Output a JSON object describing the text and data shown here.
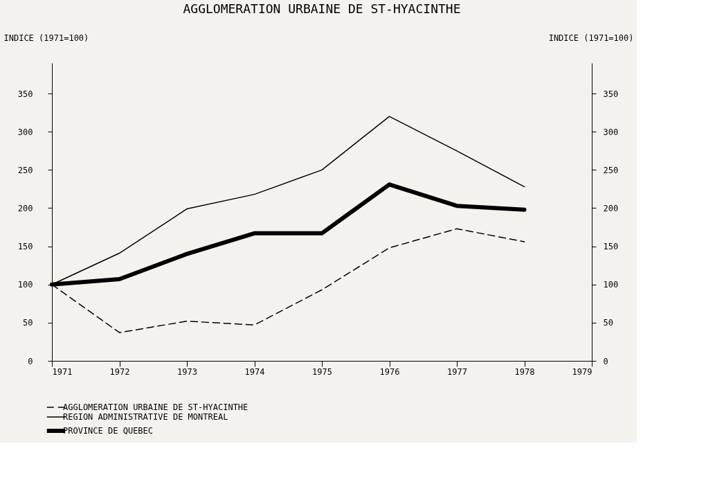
{
  "chart_data": {
    "type": "line",
    "title": "AGGLOMERATION URBAINE DE ST-HYACINTHE",
    "ylabel": "INDICE (1971=100)",
    "y2label": "INDICE (1971=100)",
    "x": [
      1971,
      1972,
      1973,
      1974,
      1975,
      1976,
      1977,
      1978
    ],
    "xlim": [
      1971,
      1979
    ],
    "xticks": [
      1971,
      1972,
      1973,
      1974,
      1975,
      1976,
      1977,
      1978,
      1979
    ],
    "ylim": [
      0,
      390
    ],
    "yticks": [
      0,
      50,
      100,
      150,
      200,
      250,
      300,
      350
    ],
    "y2lim": [
      0,
      390
    ],
    "y2ticks": [
      0,
      50,
      100,
      150,
      200,
      250,
      300,
      350
    ],
    "grid": false,
    "legend": "bottom left",
    "marker": "none",
    "series": [
      {
        "name": "AGGLOMERATION URBAINE DE ST-HYACINTHE",
        "color": "#000000",
        "line_style": "dashed",
        "values": [
          100,
          37,
          52,
          47,
          93,
          148,
          173,
          156
        ]
      },
      {
        "name": "REGION ADMINISTRATIVE DE MONTREAL",
        "color": "#000000",
        "line_style": "solid",
        "values": [
          100,
          141,
          199,
          218,
          250,
          320,
          275,
          228
        ]
      },
      {
        "name": "PROVINCE DE QUEBEC",
        "color": "#000000",
        "line_style": "solid",
        "values": [
          100,
          107,
          140,
          167,
          167,
          231,
          203,
          198
        ]
      }
    ]
  }
}
